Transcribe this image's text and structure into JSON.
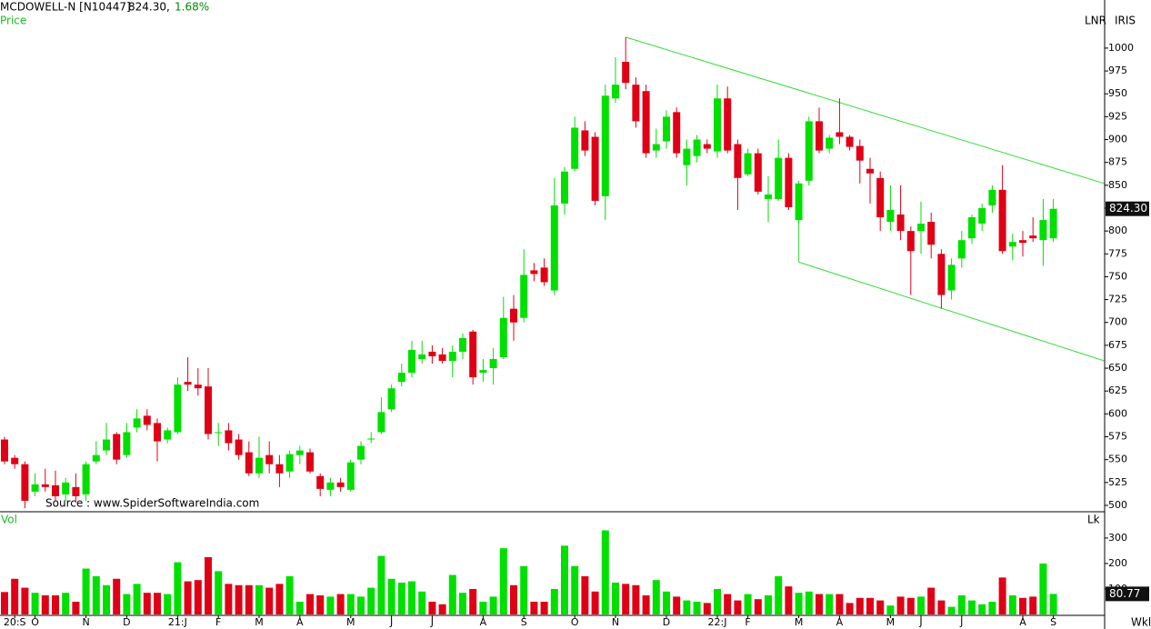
{
  "chart_data": {
    "type": "candlestick",
    "title": "MCDOWELL-N [N10447]",
    "header_price": "824.30,",
    "header_change": "1.68%",
    "price_label": "Price",
    "volume_title": "Vol",
    "volume_unit": "Lk",
    "scale_mode": "LNR",
    "scale_style": "IRIS",
    "period": "Wkl",
    "source": "Source : www.SpiderSoftwareIndia.com",
    "categories": [
      null,
      "20:S",
      null,
      "O",
      null,
      null,
      null,
      null,
      "N",
      null,
      null,
      null,
      "D",
      null,
      null,
      null,
      null,
      "21:J",
      null,
      null,
      null,
      "F",
      null,
      null,
      null,
      "M",
      null,
      null,
      null,
      "A",
      null,
      null,
      null,
      null,
      "M",
      null,
      null,
      null,
      "J",
      null,
      null,
      null,
      "J",
      null,
      null,
      null,
      null,
      "A",
      null,
      null,
      null,
      "S",
      null,
      null,
      null,
      null,
      "O",
      null,
      null,
      null,
      "N",
      null,
      null,
      null,
      null,
      "D",
      null,
      null,
      null,
      null,
      "22:J",
      null,
      null,
      "F",
      null,
      null,
      null,
      null,
      "M",
      null,
      null,
      null,
      "A",
      null,
      null,
      null,
      null,
      "M",
      null,
      null,
      "J",
      null,
      null,
      null,
      "J",
      null,
      null,
      null,
      null,
      null,
      "A",
      null,
      null,
      "S"
    ],
    "open": [
      572,
      552,
      545,
      515,
      523,
      522,
      512,
      520,
      512,
      548,
      560,
      578,
      555,
      585,
      598,
      590,
      572,
      580,
      635,
      632,
      630,
      580,
      582,
      572,
      558,
      535,
      555,
      545,
      537,
      555,
      558,
      532,
      517,
      525,
      517,
      550,
      572,
      580,
      605,
      635,
      645,
      660,
      668,
      665,
      658,
      668,
      690,
      645,
      650,
      662,
      715,
      705,
      757,
      760,
      735,
      830,
      868,
      910,
      903,
      838,
      945,
      985,
      960,
      953,
      888,
      898,
      930,
      872,
      882,
      895,
      887,
      945,
      895,
      862,
      885,
      835,
      835,
      880,
      812,
      855,
      920,
      890,
      908,
      903,
      893,
      868,
      858,
      810,
      818,
      800,
      800,
      810,
      775,
      735,
      770,
      792,
      808,
      828,
      845,
      783,
      790,
      795,
      790,
      792
    ],
    "high": [
      575,
      555,
      548,
      535,
      540,
      538,
      530,
      535,
      548,
      570,
      590,
      580,
      590,
      605,
      605,
      595,
      585,
      640,
      662,
      650,
      650,
      590,
      590,
      578,
      570,
      575,
      570,
      555,
      560,
      565,
      562,
      535,
      530,
      530,
      550,
      570,
      580,
      618,
      632,
      655,
      680,
      680,
      675,
      672,
      675,
      688,
      692,
      660,
      672,
      728,
      730,
      780,
      765,
      770,
      858,
      870,
      925,
      920,
      908,
      960,
      990,
      1012,
      968,
      960,
      912,
      932,
      935,
      900,
      905,
      900,
      960,
      958,
      900,
      890,
      890,
      860,
      900,
      885,
      855,
      925,
      935,
      905,
      945,
      905,
      900,
      880,
      865,
      850,
      850,
      805,
      832,
      820,
      780,
      770,
      800,
      818,
      830,
      850,
      872,
      797,
      800,
      815,
      835,
      835
    ],
    "low": [
      545,
      540,
      497,
      510,
      515,
      505,
      505,
      503,
      505,
      545,
      555,
      545,
      552,
      580,
      582,
      548,
      568,
      578,
      625,
      620,
      572,
      565,
      560,
      550,
      532,
      530,
      535,
      520,
      530,
      545,
      535,
      510,
      510,
      515,
      515,
      545,
      568,
      578,
      602,
      630,
      640,
      655,
      655,
      655,
      640,
      660,
      632,
      635,
      632,
      660,
      680,
      700,
      745,
      740,
      730,
      818,
      865,
      882,
      828,
      812,
      940,
      955,
      913,
      880,
      880,
      890,
      880,
      850,
      875,
      885,
      880,
      885,
      823,
      860,
      840,
      810,
      833,
      823,
      808,
      850,
      885,
      885,
      895,
      888,
      852,
      830,
      800,
      800,
      790,
      730,
      775,
      770,
      715,
      725,
      760,
      786,
      800,
      820,
      775,
      768,
      772,
      788,
      762,
      788
    ],
    "close": [
      548,
      545,
      505,
      523,
      520,
      510,
      525,
      510,
      545,
      555,
      572,
      550,
      580,
      595,
      588,
      570,
      582,
      632,
      632,
      628,
      578,
      580,
      568,
      555,
      535,
      552,
      545,
      535,
      556,
      560,
      537,
      518,
      525,
      520,
      547,
      565,
      573,
      602,
      628,
      645,
      670,
      665,
      663,
      658,
      668,
      683,
      640,
      648,
      660,
      705,
      700,
      752,
      753,
      744,
      828,
      865,
      913,
      888,
      833,
      948,
      960,
      962,
      920,
      885,
      895,
      925,
      885,
      890,
      900,
      890,
      945,
      888,
      858,
      885,
      843,
      840,
      880,
      826,
      852,
      920,
      888,
      902,
      903,
      892,
      877,
      863,
      815,
      823,
      800,
      778,
      808,
      785,
      730,
      763,
      790,
      815,
      825,
      845,
      778,
      788,
      787,
      792,
      812,
      824.3
    ],
    "close_label": "824.30",
    "volume": [
      88,
      140,
      105,
      85,
      75,
      75,
      85,
      50,
      180,
      150,
      115,
      140,
      80,
      120,
      85,
      85,
      80,
      205,
      130,
      135,
      225,
      170,
      120,
      115,
      115,
      115,
      105,
      120,
      150,
      50,
      80,
      75,
      70,
      80,
      80,
      70,
      105,
      230,
      140,
      125,
      130,
      90,
      50,
      40,
      155,
      85,
      100,
      50,
      70,
      260,
      115,
      190,
      50,
      50,
      100,
      270,
      190,
      150,
      90,
      330,
      125,
      120,
      115,
      75,
      135,
      90,
      70,
      55,
      50,
      45,
      100,
      80,
      55,
      80,
      60,
      75,
      150,
      110,
      85,
      90,
      80,
      80,
      80,
      45,
      65,
      65,
      55,
      35,
      70,
      65,
      70,
      105,
      55,
      30,
      75,
      55,
      40,
      50,
      145,
      75,
      65,
      70,
      200,
      80.77
    ],
    "up_color": "#00e000",
    "down_color": "#e00016",
    "trendline_color": "#33dd33",
    "trendlines": [
      {
        "x": [
          61,
          108
        ],
        "y": [
          1012,
          852
        ]
      },
      {
        "x": [
          78,
          108
        ],
        "y": [
          766,
          658
        ]
      },
      {
        "x": [
          78,
          78
        ],
        "y": [
          826,
          766
        ]
      }
    ],
    "ylim": [
      494,
      1052.6
    ],
    "yticks": [
      500,
      525,
      550,
      575,
      600,
      625,
      650,
      675,
      700,
      725,
      750,
      775,
      800,
      825,
      850,
      875,
      900,
      925,
      950,
      975,
      1000
    ],
    "vol_ylim": [
      0,
      396
    ],
    "vol_yticks": [
      100,
      200,
      300
    ]
  }
}
